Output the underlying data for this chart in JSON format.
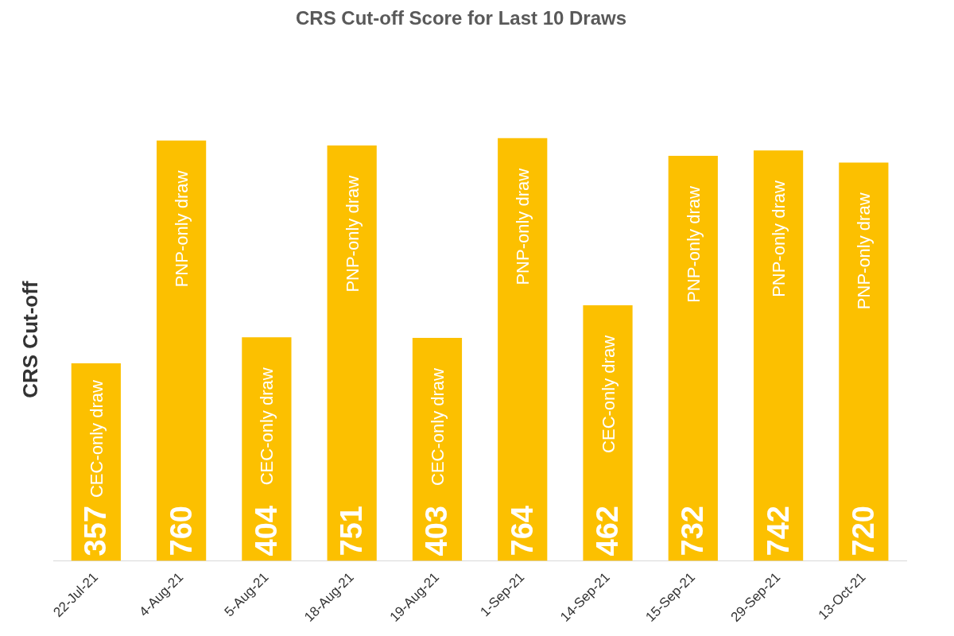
{
  "chart_data": {
    "type": "bar",
    "title": "CRS Cut-off Score for Last 10 Draws",
    "ylabel": "CRS Cut-off",
    "categories": [
      "22-Jul-21",
      "4-Aug-21",
      "5-Aug-21",
      "18-Aug-21",
      "19-Aug-21",
      "1-Sep-21",
      "14-Sep-21",
      "15-Sep-21",
      "29-Sep-21",
      "13-Oct-21"
    ],
    "values": [
      357,
      760,
      404,
      751,
      403,
      764,
      462,
      732,
      742,
      720
    ],
    "color": "#fcc000",
    "data_labels": true,
    "grid": false,
    "legend": false,
    "annotations": [
      "CEC-only draw",
      "PNP-only draw",
      "CEC-only draw",
      "PNP-only draw",
      "CEC-only draw",
      "PNP-only draw",
      "CEC-only draw",
      "PNP-only draw",
      "PNP-only draw",
      "PNP-only draw"
    ]
  }
}
